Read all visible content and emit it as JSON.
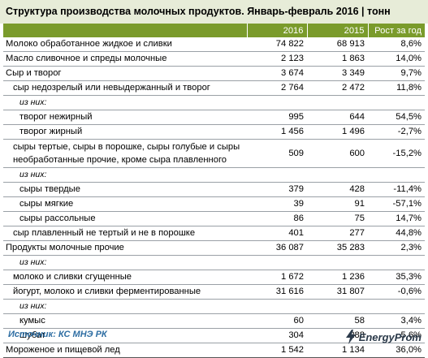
{
  "title": "Структура производства молочных продуктов. Январь-февраль 2016 | тонн",
  "table": {
    "headers": [
      "",
      "2016",
      "2015",
      "Рост за год"
    ],
    "rows": [
      {
        "label": "Молоко обработанное жидкое и сливки",
        "v2016": "74 822",
        "v2015": "68 913",
        "growth": "8,6%",
        "level": 0
      },
      {
        "label": "Масло сливочное и спреды молочные",
        "v2016": "2 123",
        "v2015": "1 863",
        "growth": "14,0%",
        "level": 0
      },
      {
        "label": "Сыр и творог",
        "v2016": "3 674",
        "v2015": "3 349",
        "growth": "9,7%",
        "level": 0
      },
      {
        "label": "сыр недозрелый или невыдержанный и творог",
        "v2016": "2 764",
        "v2015": "2 472",
        "growth": "11,8%",
        "level": 1
      },
      {
        "label": "из них:",
        "v2016": "",
        "v2015": "",
        "growth": "",
        "level": "sub"
      },
      {
        "label": "творог нежирный",
        "v2016": "995",
        "v2015": "644",
        "growth": "54,5%",
        "level": 2
      },
      {
        "label": "творог жирный",
        "v2016": "1 456",
        "v2015": "1 496",
        "growth": "-2,7%",
        "level": 2
      },
      {
        "label": "сыры тертые, сыры в порошке, сыры голубые и сыры необработанные прочие, кроме сыра плавленного",
        "v2016": "509",
        "v2015": "600",
        "growth": "-15,2%",
        "level": 1
      },
      {
        "label": "из них:",
        "v2016": "",
        "v2015": "",
        "growth": "",
        "level": "sub"
      },
      {
        "label": "сыры твердые",
        "v2016": "379",
        "v2015": "428",
        "growth": "-11,4%",
        "level": 2
      },
      {
        "label": "сыры мягкие",
        "v2016": "39",
        "v2015": "91",
        "growth": "-57,1%",
        "level": 2
      },
      {
        "label": "сыры рассольные",
        "v2016": "86",
        "v2015": "75",
        "growth": "14,7%",
        "level": 2
      },
      {
        "label": "сыр плавленный не тертый и не в порошке",
        "v2016": "401",
        "v2015": "277",
        "growth": "44,8%",
        "level": 1
      },
      {
        "label": "Продукты молочные прочие",
        "v2016": "36 087",
        "v2015": "35 283",
        "growth": "2,3%",
        "level": 0
      },
      {
        "label": "из них:",
        "v2016": "",
        "v2015": "",
        "growth": "",
        "level": "sub"
      },
      {
        "label": "молоко и сливки сгущенные",
        "v2016": "1 672",
        "v2015": "1 236",
        "growth": "35,3%",
        "level": 1
      },
      {
        "label": "йогурт, молоко и сливки ферментированные",
        "v2016": "31 616",
        "v2015": "31 807",
        "growth": "-0,6%",
        "level": 1
      },
      {
        "label": "из них:",
        "v2016": "",
        "v2015": "",
        "growth": "",
        "level": "sub"
      },
      {
        "label": "кумыс",
        "v2016": "60",
        "v2015": "58",
        "growth": "3,4%",
        "level": 2
      },
      {
        "label": "шубат",
        "v2016": "304",
        "v2015": "288",
        "growth": "5,6%",
        "level": 2
      },
      {
        "label": "Мороженое и пищевой лед",
        "v2016": "1 542",
        "v2015": "1 134",
        "growth": "36,0%",
        "level": 0
      }
    ]
  },
  "footer": {
    "source": "Источник: КС МНЭ РК",
    "logo_text": "EnergyProm",
    "logo_icon": "energyprom-logo-icon"
  },
  "colors": {
    "header_bg": "#7a9b2b",
    "title_bg": "#e7ecd8",
    "source_text": "#2e6ea3"
  }
}
